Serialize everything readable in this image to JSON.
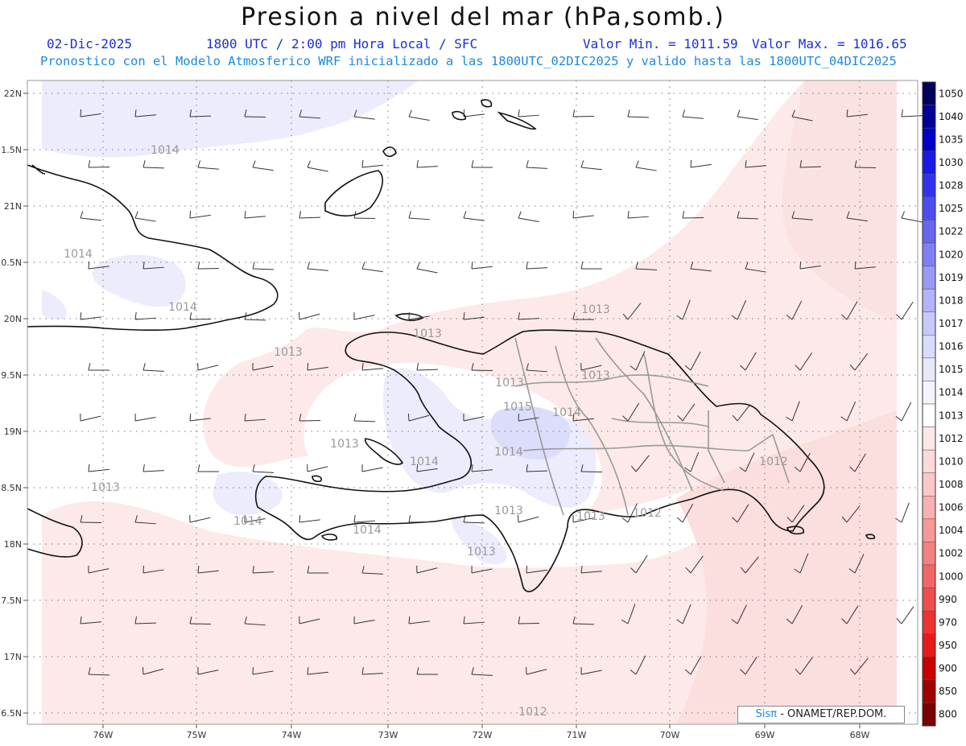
{
  "title": "Presion a nivel del mar (hPa,somb.)",
  "date": "02-Dic-2025",
  "time_label": "1800 UTC / 2:00 pm Hora Local / SFC",
  "min_label": "Valor Min. = 1011.59",
  "max_label": "Valor Max. = 1016.65",
  "model_line": "Pronostico con el Modelo Atmosferico WRF inicializado a las 1800UTC_02DIC2025 y valido hasta las  1800UTC_04DIC2025",
  "credit": {
    "brand": "Sisπ",
    "text": " - ONAMET/REP.DOM."
  },
  "axes": {
    "lat_labels": [
      "22N",
      "1.5N",
      "21N",
      "0.5N",
      "20N",
      "9.5N",
      "19N",
      "8.5N",
      "18N",
      "7.5N",
      "17N",
      "6.5N"
    ],
    "lon_labels": [
      "76W",
      "75W",
      "74W",
      "73W",
      "72W",
      "71W",
      "70W",
      "69W",
      "68W"
    ]
  },
  "contour_labels": [
    "1014",
    "1014",
    "1014",
    "1013",
    "1013",
    "1013",
    "1013",
    "1015",
    "1014",
    "1014",
    "1014",
    "1013",
    "1013",
    "1013",
    "1014",
    "1014",
    "1013",
    "1013",
    "1012",
    "1012",
    "1012",
    "1013"
  ],
  "legend": {
    "levels": [
      "1050",
      "1040",
      "1035",
      "1030",
      "1028",
      "1025",
      "1022",
      "1020",
      "1019",
      "1018",
      "1017",
      "1016",
      "1015",
      "1014",
      "1013",
      "1012",
      "1010",
      "1008",
      "1006",
      "1004",
      "1002",
      "1000",
      "990",
      "970",
      "950",
      "900",
      "850",
      "800"
    ],
    "colors": [
      "#00005e",
      "#000096",
      "#0000c8",
      "#1a1ae6",
      "#3333ee",
      "#4d4df0",
      "#6666f2",
      "#8080f5",
      "#9999f7",
      "#b3b3f8",
      "#c8c8fa",
      "#dadafc",
      "#e8e8fd",
      "#f4f4ff",
      "#ffffff",
      "#fde8e8",
      "#fcdada",
      "#fbc8c8",
      "#f9b0b0",
      "#f79898",
      "#f58080",
      "#f26666",
      "#f04d4d",
      "#ee3333",
      "#e61a1a",
      "#c80000",
      "#a00000",
      "#780000"
    ]
  }
}
